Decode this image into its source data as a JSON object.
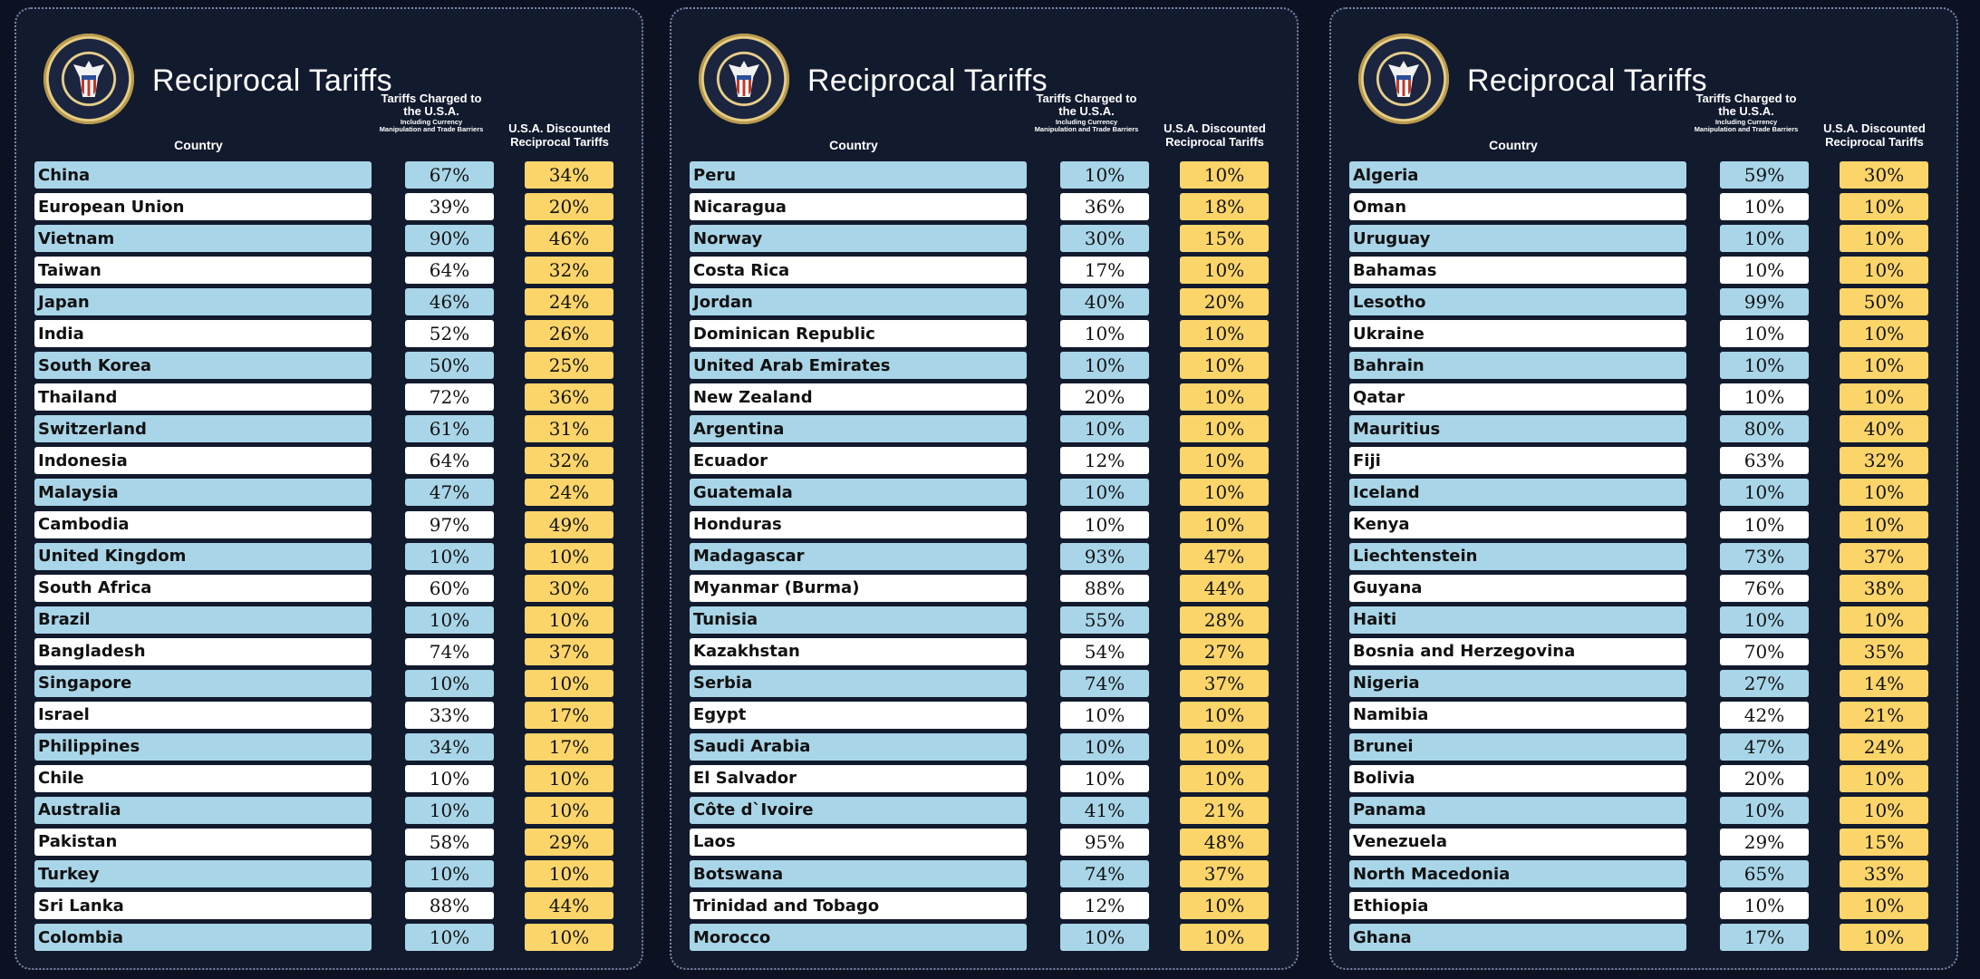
{
  "headers": {
    "title": "Reciprocal Tariffs",
    "country": "Country",
    "charged_main": "Tariffs Charged to the U.S.A.",
    "charged_sub": "Including Currency Manipulation and Trade Barriers",
    "discounted": "U.S.A. Discounted Reciprocal Tariffs"
  },
  "panels": [
    {
      "rows": [
        {
          "country": "China",
          "charged": "67%",
          "discounted": "34%"
        },
        {
          "country": "European Union",
          "charged": "39%",
          "discounted": "20%"
        },
        {
          "country": "Vietnam",
          "charged": "90%",
          "discounted": "46%"
        },
        {
          "country": "Taiwan",
          "charged": "64%",
          "discounted": "32%"
        },
        {
          "country": "Japan",
          "charged": "46%",
          "discounted": "24%"
        },
        {
          "country": "India",
          "charged": "52%",
          "discounted": "26%"
        },
        {
          "country": "South Korea",
          "charged": "50%",
          "discounted": "25%"
        },
        {
          "country": "Thailand",
          "charged": "72%",
          "discounted": "36%"
        },
        {
          "country": "Switzerland",
          "charged": "61%",
          "discounted": "31%"
        },
        {
          "country": "Indonesia",
          "charged": "64%",
          "discounted": "32%"
        },
        {
          "country": "Malaysia",
          "charged": "47%",
          "discounted": "24%"
        },
        {
          "country": "Cambodia",
          "charged": "97%",
          "discounted": "49%"
        },
        {
          "country": "United Kingdom",
          "charged": "10%",
          "discounted": "10%"
        },
        {
          "country": "South Africa",
          "charged": "60%",
          "discounted": "30%"
        },
        {
          "country": "Brazil",
          "charged": "10%",
          "discounted": "10%"
        },
        {
          "country": "Bangladesh",
          "charged": "74%",
          "discounted": "37%"
        },
        {
          "country": "Singapore",
          "charged": "10%",
          "discounted": "10%"
        },
        {
          "country": "Israel",
          "charged": "33%",
          "discounted": "17%"
        },
        {
          "country": "Philippines",
          "charged": "34%",
          "discounted": "17%"
        },
        {
          "country": "Chile",
          "charged": "10%",
          "discounted": "10%"
        },
        {
          "country": "Australia",
          "charged": "10%",
          "discounted": "10%"
        },
        {
          "country": "Pakistan",
          "charged": "58%",
          "discounted": "29%"
        },
        {
          "country": "Turkey",
          "charged": "10%",
          "discounted": "10%"
        },
        {
          "country": "Sri Lanka",
          "charged": "88%",
          "discounted": "44%"
        },
        {
          "country": "Colombia",
          "charged": "10%",
          "discounted": "10%"
        }
      ]
    },
    {
      "rows": [
        {
          "country": "Peru",
          "charged": "10%",
          "discounted": "10%"
        },
        {
          "country": "Nicaragua",
          "charged": "36%",
          "discounted": "18%"
        },
        {
          "country": "Norway",
          "charged": "30%",
          "discounted": "15%"
        },
        {
          "country": "Costa Rica",
          "charged": "17%",
          "discounted": "10%"
        },
        {
          "country": "Jordan",
          "charged": "40%",
          "discounted": "20%"
        },
        {
          "country": "Dominican Republic",
          "charged": "10%",
          "discounted": "10%"
        },
        {
          "country": "United Arab Emirates",
          "charged": "10%",
          "discounted": "10%"
        },
        {
          "country": "New Zealand",
          "charged": "20%",
          "discounted": "10%"
        },
        {
          "country": "Argentina",
          "charged": "10%",
          "discounted": "10%"
        },
        {
          "country": "Ecuador",
          "charged": "12%",
          "discounted": "10%"
        },
        {
          "country": "Guatemala",
          "charged": "10%",
          "discounted": "10%"
        },
        {
          "country": "Honduras",
          "charged": "10%",
          "discounted": "10%"
        },
        {
          "country": "Madagascar",
          "charged": "93%",
          "discounted": "47%"
        },
        {
          "country": "Myanmar (Burma)",
          "charged": "88%",
          "discounted": "44%"
        },
        {
          "country": "Tunisia",
          "charged": "55%",
          "discounted": "28%"
        },
        {
          "country": "Kazakhstan",
          "charged": "54%",
          "discounted": "27%"
        },
        {
          "country": "Serbia",
          "charged": "74%",
          "discounted": "37%"
        },
        {
          "country": "Egypt",
          "charged": "10%",
          "discounted": "10%"
        },
        {
          "country": "Saudi Arabia",
          "charged": "10%",
          "discounted": "10%"
        },
        {
          "country": "El Salvador",
          "charged": "10%",
          "discounted": "10%"
        },
        {
          "country": "Côte d`Ivoire",
          "charged": "41%",
          "discounted": "21%"
        },
        {
          "country": "Laos",
          "charged": "95%",
          "discounted": "48%"
        },
        {
          "country": "Botswana",
          "charged": "74%",
          "discounted": "37%"
        },
        {
          "country": "Trinidad and Tobago",
          "charged": "12%",
          "discounted": "10%"
        },
        {
          "country": "Morocco",
          "charged": "10%",
          "discounted": "10%"
        }
      ]
    },
    {
      "rows": [
        {
          "country": "Algeria",
          "charged": "59%",
          "discounted": "30%"
        },
        {
          "country": "Oman",
          "charged": "10%",
          "discounted": "10%"
        },
        {
          "country": "Uruguay",
          "charged": "10%",
          "discounted": "10%"
        },
        {
          "country": "Bahamas",
          "charged": "10%",
          "discounted": "10%"
        },
        {
          "country": "Lesotho",
          "charged": "99%",
          "discounted": "50%"
        },
        {
          "country": "Ukraine",
          "charged": "10%",
          "discounted": "10%"
        },
        {
          "country": "Bahrain",
          "charged": "10%",
          "discounted": "10%"
        },
        {
          "country": "Qatar",
          "charged": "10%",
          "discounted": "10%"
        },
        {
          "country": "Mauritius",
          "charged": "80%",
          "discounted": "40%"
        },
        {
          "country": "Fiji",
          "charged": "63%",
          "discounted": "32%"
        },
        {
          "country": "Iceland",
          "charged": "10%",
          "discounted": "10%"
        },
        {
          "country": "Kenya",
          "charged": "10%",
          "discounted": "10%"
        },
        {
          "country": "Liechtenstein",
          "charged": "73%",
          "discounted": "37%"
        },
        {
          "country": "Guyana",
          "charged": "76%",
          "discounted": "38%"
        },
        {
          "country": "Haiti",
          "charged": "10%",
          "discounted": "10%"
        },
        {
          "country": "Bosnia and Herzegovina",
          "charged": "70%",
          "discounted": "35%"
        },
        {
          "country": "Nigeria",
          "charged": "27%",
          "discounted": "14%"
        },
        {
          "country": "Namibia",
          "charged": "42%",
          "discounted": "21%"
        },
        {
          "country": "Brunei",
          "charged": "47%",
          "discounted": "24%"
        },
        {
          "country": "Bolivia",
          "charged": "20%",
          "discounted": "10%"
        },
        {
          "country": "Panama",
          "charged": "10%",
          "discounted": "10%"
        },
        {
          "country": "Venezuela",
          "charged": "29%",
          "discounted": "15%"
        },
        {
          "country": "North Macedonia",
          "charged": "65%",
          "discounted": "33%"
        },
        {
          "country": "Ethiopia",
          "charged": "10%",
          "discounted": "10%"
        },
        {
          "country": "Ghana",
          "charged": "17%",
          "discounted": "10%"
        }
      ]
    }
  ]
}
